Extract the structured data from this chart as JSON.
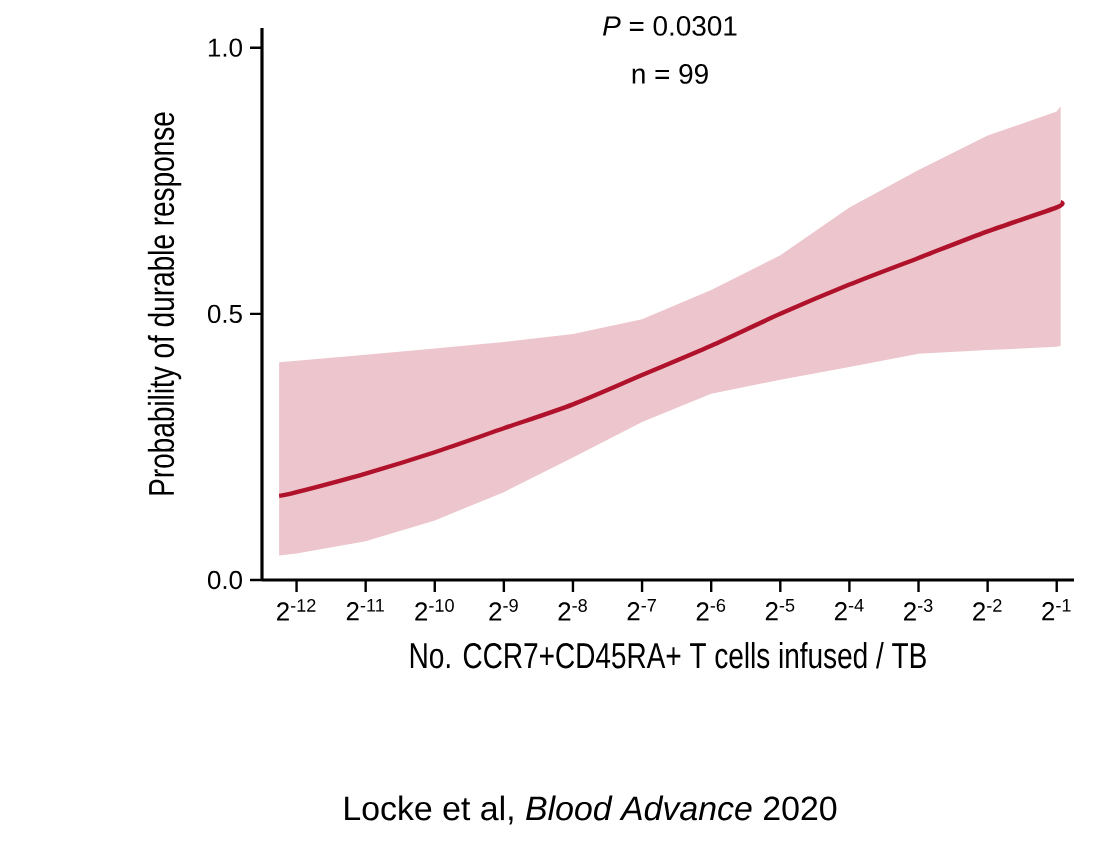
{
  "chart_data": {
    "type": "line",
    "xlabel": "No. CCR7+CD45RA+ T cells infused / TB",
    "ylabel": "Probability of durable response",
    "annotations": [
      "*P* = 0.0301",
      "n = 99",
      "Locke et al, *Blood Advance* 2020"
    ],
    "log": "x",
    "x": [
      0.000205,
      0.000244140625,
      0.00048828125,
      0.0009765625,
      0.001953125,
      0.00390625,
      0.0078125,
      0.015625,
      0.03125,
      0.0625,
      0.125,
      0.25,
      0.5,
      0.52
    ],
    "series": [
      {
        "color": "#b0122b",
        "values": [
          0.158,
          0.165,
          0.2,
          0.24,
          0.285,
          0.33,
          0.385,
          0.44,
          0.5,
          0.555,
          0.605,
          0.655,
          0.7,
          0.71
        ],
        "lower": [
          0.046,
          0.05,
          0.073,
          0.112,
          0.165,
          0.23,
          0.297,
          0.35,
          0.376,
          0.4,
          0.425,
          0.432,
          0.438,
          0.44
        ],
        "upper": [
          0.409,
          0.412,
          0.423,
          0.435,
          0.447,
          0.462,
          0.49,
          0.545,
          0.61,
          0.7,
          0.77,
          0.835,
          0.88,
          0.89
        ]
      }
    ],
    "xlim": [
      0.000172633,
      0.594604
    ],
    "xticks": [
      {
        "value": 0.000244140625,
        "label": "2$^{-12}$"
      },
      {
        "value": 0.00048828125,
        "label": "2$^{-11}$"
      },
      {
        "value": 0.0009765625,
        "label": "2$^{-10}$"
      },
      {
        "value": 0.001953125,
        "label": "2$^{-9}$"
      },
      {
        "value": 0.00390625,
        "label": "2$^{-8}$"
      },
      {
        "value": 0.0078125,
        "label": "2$^{-7}$"
      },
      {
        "value": 0.015625,
        "label": "2$^{-6}$"
      },
      {
        "value": 0.03125,
        "label": "2$^{-5}$"
      },
      {
        "value": 0.0625,
        "label": "2$^{-4}$"
      },
      {
        "value": 0.125,
        "label": "2$^{-3}$"
      },
      {
        "value": 0.25,
        "label": "2$^{-2}$"
      },
      {
        "value": 0.5,
        "label": "2$^{-1}$"
      }
    ],
    "ylim": [
      0,
      1.037
    ],
    "yticks": [
      {
        "value": 0,
        "label": "0.0"
      },
      {
        "value": 0.5,
        "label": "0.5"
      },
      {
        "value": 1.0,
        "label": "1.0"
      }
    ],
    "grid": false,
    "marker": "none",
    "line_style": "solid"
  }
}
